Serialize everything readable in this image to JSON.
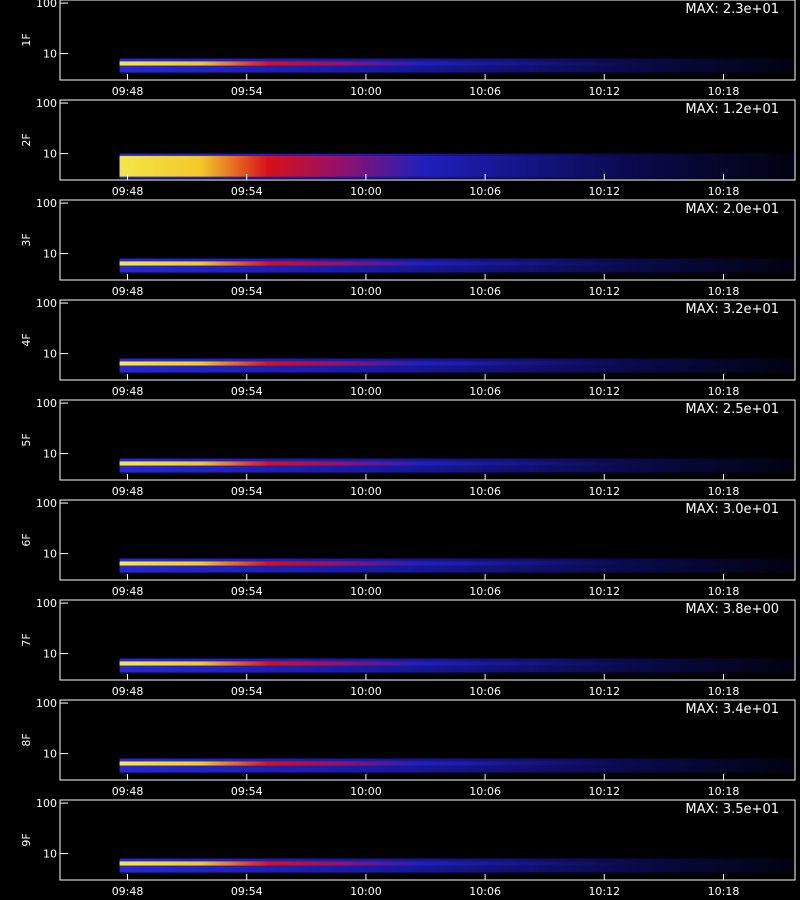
{
  "chart_data": [
    {
      "type": "spectrogram",
      "ylabel": "1F",
      "annotation": "MAX: 2.3e+01",
      "log_y": true,
      "ylim": [
        3,
        115
      ],
      "yticks": [
        10,
        100
      ],
      "xlim": [
        584.6,
        621.6
      ],
      "xticks": [
        {
          "value": 588,
          "label": "09:48"
        },
        {
          "value": 594,
          "label": "09:54"
        },
        {
          "value": 600,
          "label": "10:00"
        },
        {
          "value": 606,
          "label": "10:06"
        },
        {
          "value": 612,
          "label": "10:12"
        },
        {
          "value": 618,
          "label": "10:18"
        }
      ]
    },
    {
      "type": "spectrogram",
      "ylabel": "2F",
      "annotation": "MAX: 1.2e+01",
      "log_y": true,
      "ylim": [
        3,
        115
      ],
      "yticks": [
        10,
        100
      ],
      "xlim": [
        584.6,
        621.6
      ],
      "xticks": [
        {
          "value": 588,
          "label": "09:48"
        },
        {
          "value": 594,
          "label": "09:54"
        },
        {
          "value": 600,
          "label": "10:00"
        },
        {
          "value": 606,
          "label": "10:06"
        },
        {
          "value": 612,
          "label": "10:12"
        },
        {
          "value": 618,
          "label": "10:18"
        }
      ]
    },
    {
      "type": "spectrogram",
      "ylabel": "3F",
      "annotation": "MAX: 2.0e+01",
      "log_y": true,
      "ylim": [
        3,
        115
      ],
      "yticks": [
        10,
        100
      ],
      "xlim": [
        584.6,
        621.6
      ],
      "xticks": [
        {
          "value": 588,
          "label": "09:48"
        },
        {
          "value": 594,
          "label": "09:54"
        },
        {
          "value": 600,
          "label": "10:00"
        },
        {
          "value": 606,
          "label": "10:06"
        },
        {
          "value": 612,
          "label": "10:12"
        },
        {
          "value": 618,
          "label": "10:18"
        }
      ]
    },
    {
      "type": "spectrogram",
      "ylabel": "4F",
      "annotation": "MAX: 3.2e+01",
      "log_y": true,
      "ylim": [
        3,
        115
      ],
      "yticks": [
        10,
        100
      ],
      "xlim": [
        584.6,
        621.6
      ],
      "xticks": [
        {
          "value": 588,
          "label": "09:48"
        },
        {
          "value": 594,
          "label": "09:54"
        },
        {
          "value": 600,
          "label": "10:00"
        },
        {
          "value": 606,
          "label": "10:06"
        },
        {
          "value": 612,
          "label": "10:12"
        },
        {
          "value": 618,
          "label": "10:18"
        }
      ]
    },
    {
      "type": "spectrogram",
      "ylabel": "5F",
      "annotation": "MAX: 2.5e+01",
      "log_y": true,
      "ylim": [
        3,
        115
      ],
      "yticks": [
        10,
        100
      ],
      "xlim": [
        584.6,
        621.6
      ],
      "xticks": [
        {
          "value": 588,
          "label": "09:48"
        },
        {
          "value": 594,
          "label": "09:54"
        },
        {
          "value": 600,
          "label": "10:00"
        },
        {
          "value": 606,
          "label": "10:06"
        },
        {
          "value": 612,
          "label": "10:12"
        },
        {
          "value": 618,
          "label": "10:18"
        }
      ]
    },
    {
      "type": "spectrogram",
      "ylabel": "6F",
      "annotation": "MAX: 3.0e+01",
      "log_y": true,
      "ylim": [
        3,
        115
      ],
      "yticks": [
        10,
        100
      ],
      "xlim": [
        584.6,
        621.6
      ],
      "xticks": [
        {
          "value": 588,
          "label": "09:48"
        },
        {
          "value": 594,
          "label": "09:54"
        },
        {
          "value": 600,
          "label": "10:00"
        },
        {
          "value": 606,
          "label": "10:06"
        },
        {
          "value": 612,
          "label": "10:12"
        },
        {
          "value": 618,
          "label": "10:18"
        }
      ]
    },
    {
      "type": "spectrogram",
      "ylabel": "7F",
      "annotation": "MAX: 3.8e+00",
      "log_y": true,
      "ylim": [
        3,
        115
      ],
      "yticks": [
        10,
        100
      ],
      "xlim": [
        584.6,
        621.6
      ],
      "xticks": [
        {
          "value": 588,
          "label": "09:48"
        },
        {
          "value": 594,
          "label": "09:54"
        },
        {
          "value": 600,
          "label": "10:00"
        },
        {
          "value": 606,
          "label": "10:06"
        },
        {
          "value": 612,
          "label": "10:12"
        },
        {
          "value": 618,
          "label": "10:18"
        }
      ]
    },
    {
      "type": "spectrogram",
      "ylabel": "8F",
      "annotation": "MAX: 3.4e+01",
      "log_y": true,
      "ylim": [
        3,
        115
      ],
      "yticks": [
        10,
        100
      ],
      "xlim": [
        584.6,
        621.6
      ],
      "xticks": [
        {
          "value": 588,
          "label": "09:48"
        },
        {
          "value": 594,
          "label": "09:54"
        },
        {
          "value": 600,
          "label": "10:00"
        },
        {
          "value": 606,
          "label": "10:06"
        },
        {
          "value": 612,
          "label": "10:12"
        },
        {
          "value": 618,
          "label": "10:18"
        }
      ]
    },
    {
      "type": "spectrogram",
      "ylabel": "9F",
      "annotation": "MAX: 3.5e+01",
      "log_y": true,
      "ylim": [
        3,
        115
      ],
      "yticks": [
        10,
        100
      ],
      "xlim": [
        584.6,
        621.6
      ],
      "xticks": [
        {
          "value": 588,
          "label": "09:48"
        },
        {
          "value": 594,
          "label": "09:54"
        },
        {
          "value": 600,
          "label": "10:00"
        },
        {
          "value": 606,
          "label": "10:06"
        },
        {
          "value": 612,
          "label": "10:12"
        },
        {
          "value": 618,
          "label": "10:18"
        }
      ]
    }
  ]
}
